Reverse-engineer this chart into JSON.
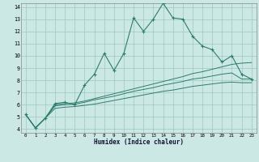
{
  "xlabel": "Humidex (Indice chaleur)",
  "x": [
    0,
    1,
    2,
    3,
    4,
    5,
    6,
    7,
    8,
    9,
    10,
    11,
    12,
    13,
    14,
    15,
    16,
    17,
    18,
    19,
    20,
    21,
    22,
    23
  ],
  "line1": [
    5.2,
    4.1,
    4.9,
    6.1,
    6.2,
    6.0,
    7.6,
    8.5,
    10.2,
    8.8,
    10.2,
    13.1,
    12.0,
    13.0,
    14.3,
    13.1,
    13.0,
    11.6,
    10.8,
    10.5,
    9.5,
    10.0,
    8.5,
    8.1
  ],
  "line2": [
    5.2,
    4.1,
    4.9,
    6.0,
    6.1,
    6.15,
    6.3,
    6.5,
    6.7,
    6.9,
    7.1,
    7.3,
    7.5,
    7.7,
    7.9,
    8.1,
    8.3,
    8.55,
    8.7,
    8.9,
    9.1,
    9.3,
    9.4,
    9.45
  ],
  "line3": [
    5.2,
    4.1,
    4.9,
    5.9,
    6.0,
    6.05,
    6.2,
    6.4,
    6.55,
    6.7,
    6.9,
    7.1,
    7.25,
    7.4,
    7.6,
    7.75,
    7.9,
    8.1,
    8.2,
    8.35,
    8.5,
    8.6,
    8.1,
    8.1
  ],
  "line4": [
    5.2,
    4.1,
    4.9,
    5.7,
    5.8,
    5.85,
    5.95,
    6.05,
    6.2,
    6.35,
    6.5,
    6.65,
    6.8,
    6.95,
    7.1,
    7.2,
    7.35,
    7.5,
    7.6,
    7.7,
    7.8,
    7.85,
    7.8,
    7.8
  ],
  "line_color": "#2d7d6e",
  "bg_color": "#cce8e4",
  "grid_color": "#9dc8c4",
  "ylim": [
    4,
    14
  ],
  "xlim": [
    -0.5,
    23.5
  ],
  "yticks": [
    4,
    5,
    6,
    7,
    8,
    9,
    10,
    11,
    12,
    13,
    14
  ],
  "xticks": [
    0,
    1,
    2,
    3,
    4,
    5,
    6,
    7,
    8,
    9,
    10,
    11,
    12,
    13,
    14,
    15,
    16,
    17,
    18,
    19,
    20,
    21,
    22,
    23
  ]
}
